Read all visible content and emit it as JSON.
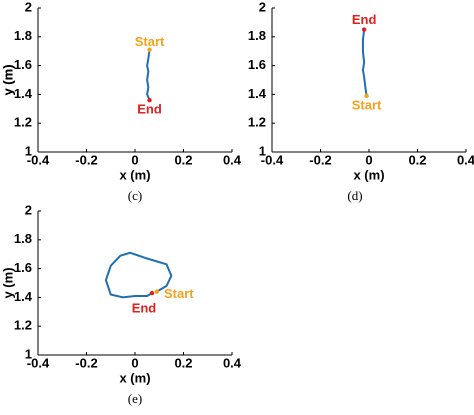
{
  "chart_data": [
    {
      "type": "line",
      "caption": "(c)",
      "xlabel": "x (m)",
      "ylabel": "y (m)",
      "xlim": [
        -0.4,
        0.4
      ],
      "ylim": [
        1,
        2
      ],
      "xticks": [
        -0.4,
        -0.2,
        0,
        0.2,
        0.4
      ],
      "yticks": [
        1,
        1.2,
        1.4,
        1.6,
        1.8,
        2
      ],
      "start_label": "Start",
      "end_label": "End",
      "color": "#1f6fb4",
      "start_color": "#f5a11c",
      "end_color": "#e0201b",
      "x": [
        0.06,
        0.055,
        0.05,
        0.055,
        0.05,
        0.055,
        0.05,
        0.055,
        0.06
      ],
      "y": [
        1.71,
        1.65,
        1.6,
        1.56,
        1.5,
        1.45,
        1.4,
        1.38,
        1.36
      ]
    },
    {
      "type": "line",
      "caption": "(d)",
      "xlabel": "x (m)",
      "ylabel": "y (m)",
      "xlim": [
        -0.4,
        0.4
      ],
      "ylim": [
        1,
        2
      ],
      "xticks": [
        -0.4,
        -0.2,
        0,
        0.2,
        0.4
      ],
      "yticks": [
        1,
        1.2,
        1.4,
        1.6,
        1.8,
        2
      ],
      "start_label": "Start",
      "end_label": "End",
      "color": "#1f6fb4",
      "start_color": "#f5a11c",
      "end_color": "#e0201b",
      "x": [
        -0.01,
        -0.015,
        -0.02,
        -0.025,
        -0.02,
        -0.025,
        -0.025,
        -0.02
      ],
      "y": [
        1.39,
        1.45,
        1.52,
        1.57,
        1.62,
        1.7,
        1.78,
        1.85
      ]
    },
    {
      "type": "line",
      "caption": "(e)",
      "xlabel": "x (m)",
      "ylabel": "y (m)",
      "xlim": [
        -0.4,
        0.4
      ],
      "ylim": [
        1,
        2
      ],
      "xticks": [
        -0.4,
        -0.2,
        0,
        0.2,
        0.4
      ],
      "yticks": [
        1,
        1.2,
        1.4,
        1.6,
        1.8,
        2
      ],
      "start_label": "Start",
      "end_label": "End",
      "color": "#1f6fb4",
      "start_color": "#f5a11c",
      "end_color": "#e0201b",
      "x": [
        0.09,
        0.13,
        0.15,
        0.13,
        0.05,
        -0.02,
        -0.06,
        -0.1,
        -0.12,
        -0.1,
        -0.05,
        0,
        0.05,
        0.07
      ],
      "y": [
        1.44,
        1.48,
        1.55,
        1.63,
        1.67,
        1.71,
        1.69,
        1.62,
        1.52,
        1.42,
        1.4,
        1.41,
        1.41,
        1.43
      ]
    }
  ]
}
